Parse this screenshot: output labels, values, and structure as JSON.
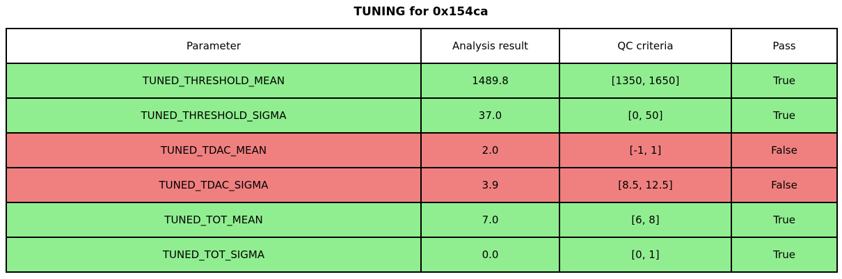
{
  "title": "TUNING for 0x154ca",
  "colors": {
    "pass": "#90ee90",
    "fail": "#f08080",
    "header_bg": "#ffffff",
    "border": "#000000",
    "text": "#000000"
  },
  "chart_data": {
    "type": "table",
    "title": "TUNING for 0x154ca",
    "columns": [
      "Parameter",
      "Analysis result",
      "QC criteria",
      "Pass"
    ],
    "rows": [
      {
        "parameter": "TUNED_THRESHOLD_MEAN",
        "result": "1489.8",
        "criteria": "[1350, 1650]",
        "pass": "True",
        "status": "pass"
      },
      {
        "parameter": "TUNED_THRESHOLD_SIGMA",
        "result": "37.0",
        "criteria": "[0, 50]",
        "pass": "True",
        "status": "pass"
      },
      {
        "parameter": "TUNED_TDAC_MEAN",
        "result": "2.0",
        "criteria": "[-1, 1]",
        "pass": "False",
        "status": "fail"
      },
      {
        "parameter": "TUNED_TDAC_SIGMA",
        "result": "3.9",
        "criteria": "[8.5, 12.5]",
        "pass": "False",
        "status": "fail"
      },
      {
        "parameter": "TUNED_TOT_MEAN",
        "result": "7.0",
        "criteria": "[6, 8]",
        "pass": "True",
        "status": "pass"
      },
      {
        "parameter": "TUNED_TOT_SIGMA",
        "result": "0.0",
        "criteria": "[0, 1]",
        "pass": "True",
        "status": "pass"
      }
    ]
  }
}
